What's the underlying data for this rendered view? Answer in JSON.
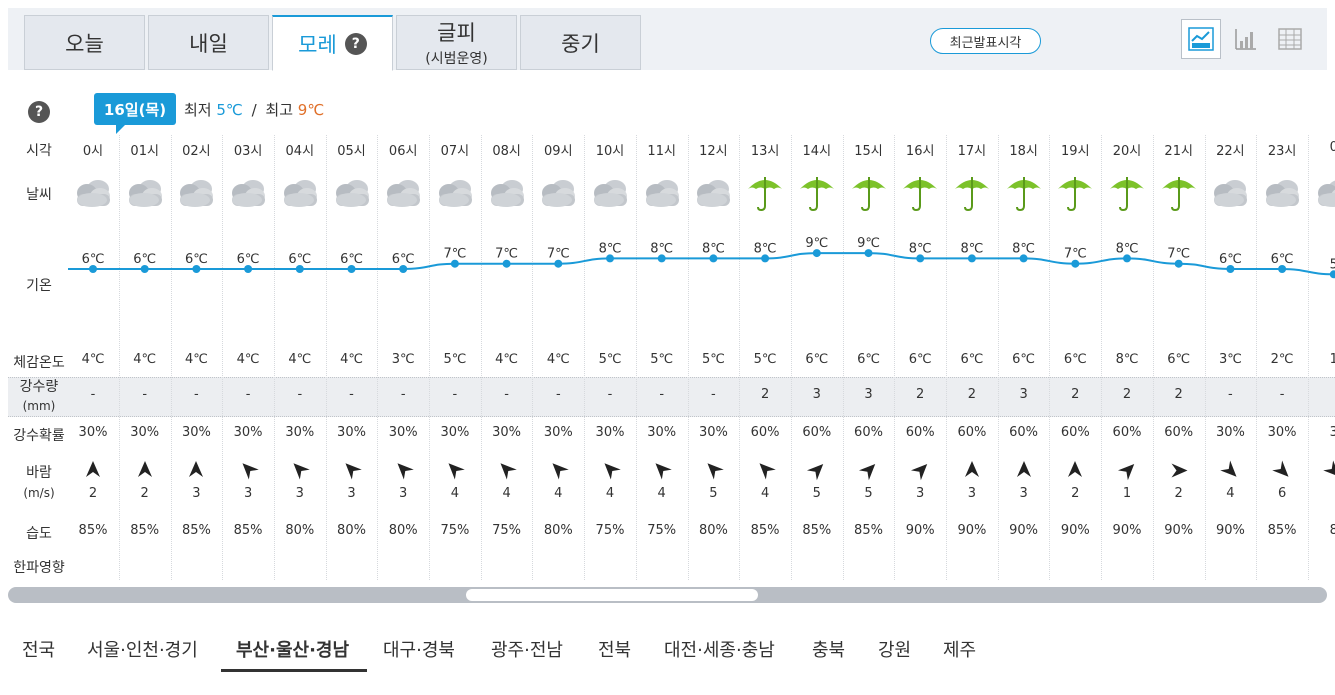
{
  "tabs": [
    {
      "label": "오늘",
      "sub": ""
    },
    {
      "label": "내일",
      "sub": ""
    },
    {
      "label": "모레",
      "sub": "",
      "active": true,
      "help": "?"
    },
    {
      "label": "글피",
      "sub": "(시범운영)"
    },
    {
      "label": "중기",
      "sub": ""
    }
  ],
  "recent_button": "최근발표시각",
  "view_icons": [
    "line-chart-icon",
    "bar-chart-icon",
    "table-icon"
  ],
  "help_symbol": "?",
  "day_badge": "16일(목)",
  "minmax": {
    "min_label": "최저",
    "min_value": "5℃",
    "sep": "/",
    "max_label": "최고",
    "max_value": "9℃"
  },
  "row_labels": {
    "time": "시각",
    "weather": "날씨",
    "temp": "기온",
    "feels": "체감온도",
    "precip_amount_1": "강수량",
    "precip_amount_2": "(mm)",
    "precip_prob": "강수확률",
    "wind_1": "바람",
    "wind_2": "(m/s)",
    "humidity": "습도",
    "cold": "한파영향"
  },
  "hours": [
    "0시",
    "01시",
    "02시",
    "03시",
    "04시",
    "05시",
    "06시",
    "07시",
    "08시",
    "09시",
    "10시",
    "11시",
    "12시",
    "13시",
    "14시",
    "15시",
    "16시",
    "17시",
    "18시",
    "19시",
    "20시",
    "21시",
    "22시",
    "23시",
    "0"
  ],
  "weather": [
    "cloudy",
    "cloudy",
    "cloudy",
    "cloudy",
    "cloudy",
    "cloudy",
    "cloudy",
    "cloudy",
    "cloudy",
    "cloudy",
    "cloudy",
    "cloudy",
    "cloudy",
    "rain",
    "rain",
    "rain",
    "rain",
    "rain",
    "rain",
    "rain",
    "rain",
    "rain",
    "cloudy",
    "cloudy",
    "cloudy"
  ],
  "temps": [
    6,
    6,
    6,
    6,
    6,
    6,
    6,
    7,
    7,
    7,
    8,
    8,
    8,
    8,
    9,
    9,
    8,
    8,
    8,
    7,
    8,
    7,
    6,
    6,
    5
  ],
  "temp_unit": "℃",
  "temps_display": [
    "6℃",
    "6℃",
    "6℃",
    "6℃",
    "6℃",
    "6℃",
    "6℃",
    "7℃",
    "7℃",
    "7℃",
    "8℃",
    "8℃",
    "8℃",
    "8℃",
    "9℃",
    "9℃",
    "8℃",
    "8℃",
    "8℃",
    "7℃",
    "8℃",
    "7℃",
    "6℃",
    "6℃",
    "5"
  ],
  "feels": [
    "4℃",
    "4℃",
    "4℃",
    "4℃",
    "4℃",
    "4℃",
    "3℃",
    "5℃",
    "4℃",
    "4℃",
    "5℃",
    "5℃",
    "5℃",
    "5℃",
    "6℃",
    "6℃",
    "6℃",
    "6℃",
    "6℃",
    "6℃",
    "8℃",
    "6℃",
    "3℃",
    "2℃",
    "1"
  ],
  "precip_amount": [
    "-",
    "-",
    "-",
    "-",
    "-",
    "-",
    "-",
    "-",
    "-",
    "-",
    "-",
    "-",
    "-",
    "2",
    "3",
    "3",
    "2",
    "2",
    "3",
    "2",
    "2",
    "2",
    "-",
    "-",
    ""
  ],
  "precip_prob": [
    "30%",
    "30%",
    "30%",
    "30%",
    "30%",
    "30%",
    "30%",
    "30%",
    "30%",
    "30%",
    "30%",
    "30%",
    "30%",
    "60%",
    "60%",
    "60%",
    "60%",
    "60%",
    "60%",
    "60%",
    "60%",
    "60%",
    "30%",
    "30%",
    "3"
  ],
  "wind_dir_deg": [
    0,
    0,
    0,
    315,
    315,
    315,
    315,
    315,
    315,
    315,
    315,
    315,
    315,
    315,
    45,
    45,
    45,
    0,
    0,
    0,
    45,
    90,
    135,
    135,
    135
  ],
  "wind_speed": [
    "2",
    "2",
    "3",
    "3",
    "3",
    "3",
    "3",
    "4",
    "4",
    "4",
    "4",
    "4",
    "5",
    "4",
    "5",
    "5",
    "3",
    "3",
    "3",
    "2",
    "1",
    "2",
    "4",
    "6",
    ""
  ],
  "humidity": [
    "85%",
    "85%",
    "85%",
    "85%",
    "80%",
    "80%",
    "80%",
    "75%",
    "75%",
    "80%",
    "75%",
    "75%",
    "80%",
    "85%",
    "85%",
    "85%",
    "90%",
    "90%",
    "90%",
    "90%",
    "90%",
    "90%",
    "90%",
    "85%",
    "8"
  ],
  "regions": [
    {
      "label": "전국"
    },
    {
      "label": "서울·인천·경기"
    },
    {
      "label": "부산·울산·경남",
      "active": true
    },
    {
      "label": "대구·경북"
    },
    {
      "label": "광주·전남"
    },
    {
      "label": "전북"
    },
    {
      "label": "대전·세종·충남"
    },
    {
      "label": "충북"
    },
    {
      "label": "강원"
    },
    {
      "label": "제주"
    }
  ],
  "colors": {
    "accent": "#1a9ad8",
    "max_temp": "#e0702a",
    "umbrella": "#7cc22a"
  }
}
